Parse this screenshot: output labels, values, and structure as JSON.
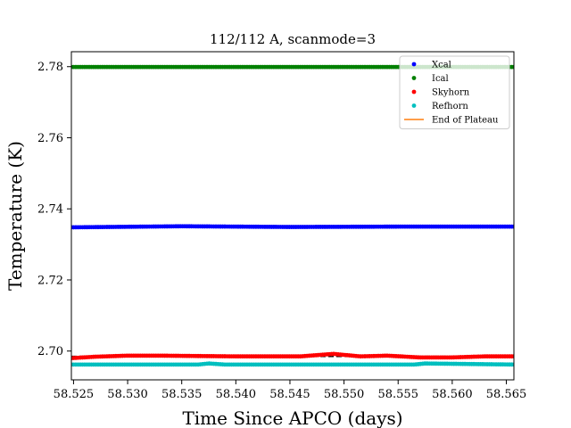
{
  "chart_data": {
    "type": "scatter",
    "title": "112/112 A, scanmode=3",
    "xlabel": "Time Since APCO (days)",
    "ylabel": "Temperature (K)",
    "xlim": [
      58.5248,
      58.5657
    ],
    "ylim": [
      2.6919,
      2.7842
    ],
    "xticks": [
      58.525,
      58.53,
      58.535,
      58.54,
      58.545,
      58.55,
      58.555,
      58.56,
      58.565
    ],
    "xtick_labels": [
      "58.525",
      "58.530",
      "58.535",
      "58.540",
      "58.545",
      "58.550",
      "58.555",
      "58.560",
      "58.565"
    ],
    "yticks": [
      2.7,
      2.72,
      2.74,
      2.76,
      2.78
    ],
    "ytick_labels": [
      "2.70",
      "2.72",
      "2.74",
      "2.76",
      "2.78"
    ],
    "x_range": [
      58.5248,
      58.5657
    ],
    "n_points": 200,
    "grid": false,
    "legend_position": "top-right",
    "series": [
      {
        "name": "Xcal",
        "color": "#0000ff",
        "marker": "dot",
        "knots_x": [
          58.5248,
          58.535,
          58.545,
          58.555,
          58.5657
        ],
        "knots_y": [
          2.7348,
          2.7351,
          2.7349,
          2.735,
          2.735
        ]
      },
      {
        "name": "Ical",
        "color": "#008000",
        "marker": "dot",
        "knots_x": [
          58.5248,
          58.535,
          58.545,
          58.555,
          58.5657
        ],
        "knots_y": [
          2.7799,
          2.7799,
          2.7799,
          2.7799,
          2.7799
        ]
      },
      {
        "name": "Skyhorn",
        "color": "#ff0000",
        "marker": "dot",
        "knots_x": [
          58.5248,
          58.527,
          58.53,
          58.533,
          58.54,
          58.546,
          58.549,
          58.5515,
          58.554,
          58.557,
          58.56,
          58.563,
          58.5657
        ],
        "knots_y": [
          2.698,
          2.6984,
          2.6987,
          2.6987,
          2.6985,
          2.6985,
          2.6992,
          2.6985,
          2.6987,
          2.6982,
          2.6982,
          2.6985,
          2.6985
        ]
      },
      {
        "name": "Refhorn",
        "color": "#00bfbf",
        "marker": "dot",
        "knots_x": [
          58.5248,
          58.5365,
          58.5375,
          58.539,
          58.545,
          58.5565,
          58.5575,
          58.5657
        ],
        "knots_y": [
          2.6962,
          2.6962,
          2.6965,
          2.6962,
          2.6962,
          2.6962,
          2.6965,
          2.6962
        ]
      },
      {
        "name": "End of Plateau",
        "color": "#ff7f0e",
        "marker": "line",
        "knots_x": [],
        "knots_y": []
      }
    ],
    "reference_lines": [
      {
        "color": "#000000",
        "style": "dashed",
        "knots_x": [
          58.5248,
          58.5657
        ],
        "knots_y": [
          2.6985,
          2.6985
        ]
      },
      {
        "color": "#000000",
        "style": "dashed",
        "knots_x": [
          58.5248,
          58.5657
        ],
        "knots_y": [
          2.6962,
          2.6962
        ]
      }
    ]
  }
}
